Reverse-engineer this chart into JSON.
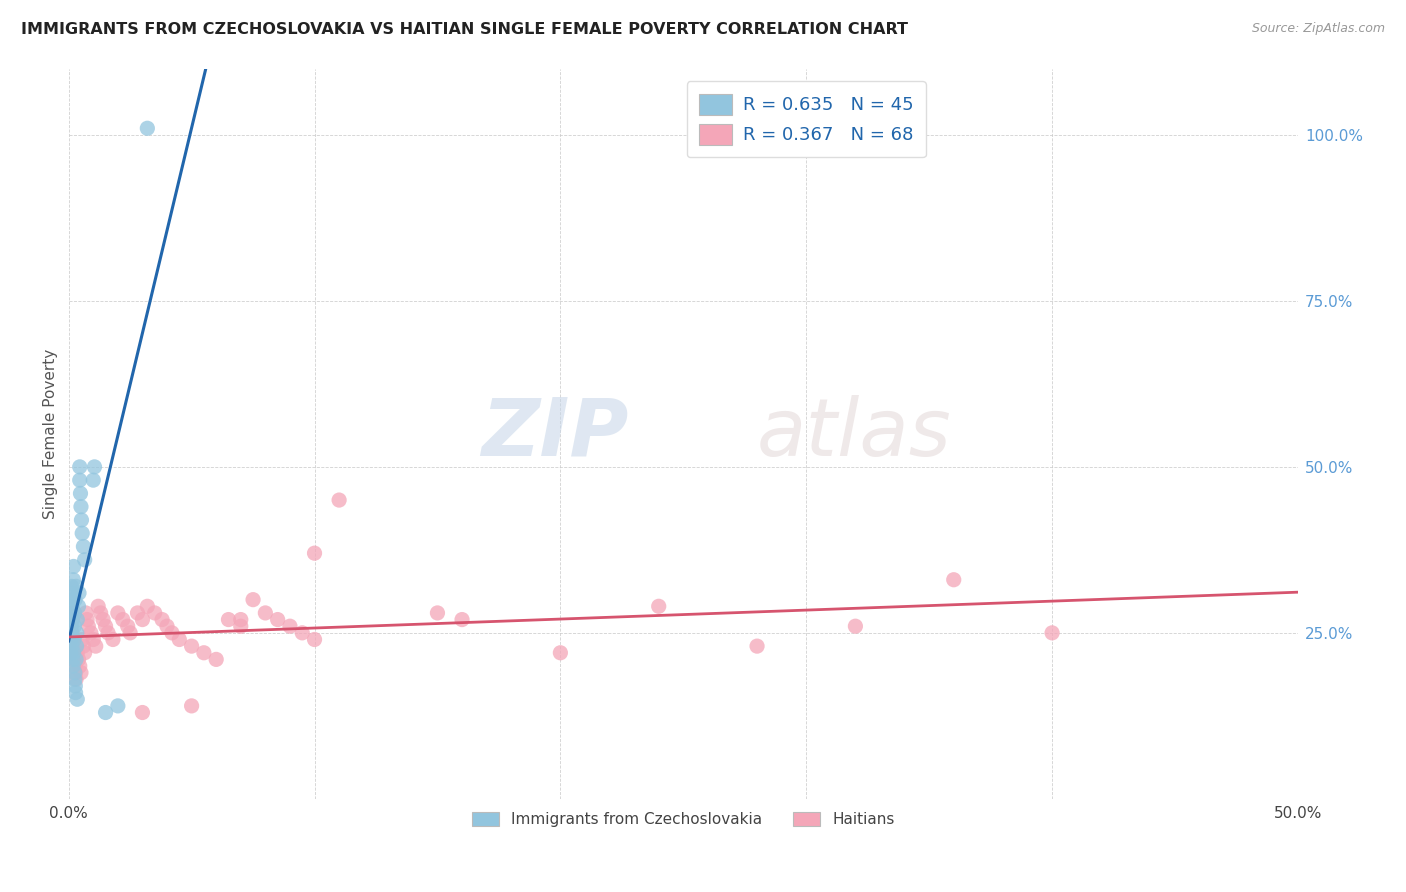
{
  "title": "IMMIGRANTS FROM CZECHOSLOVAKIA VS HAITIAN SINGLE FEMALE POVERTY CORRELATION CHART",
  "source": "Source: ZipAtlas.com",
  "ylabel": "Single Female Poverty",
  "legend_label1": "R = 0.635   N = 45",
  "legend_label2": "R = 0.367   N = 68",
  "legend_label_bottom1": "Immigrants from Czechoslovakia",
  "legend_label_bottom2": "Haitians",
  "watermark_zip": "ZIP",
  "watermark_atlas": "atlas",
  "blue_color": "#92c5de",
  "pink_color": "#f4a6b8",
  "blue_line_color": "#2166ac",
  "pink_line_color": "#d6546e",
  "blue_scatter": [
    [
      0.0008,
      0.22
    ],
    [
      0.0009,
      0.24
    ],
    [
      0.001,
      0.26
    ],
    [
      0.001,
      0.28
    ],
    [
      0.0011,
      0.3
    ],
    [
      0.0012,
      0.32
    ],
    [
      0.0013,
      0.25
    ],
    [
      0.0014,
      0.23
    ],
    [
      0.0015,
      0.27
    ],
    [
      0.0015,
      0.29
    ],
    [
      0.0016,
      0.31
    ],
    [
      0.0017,
      0.21
    ],
    [
      0.0018,
      0.2
    ],
    [
      0.0019,
      0.33
    ],
    [
      0.002,
      0.35
    ],
    [
      0.002,
      0.22
    ],
    [
      0.0022,
      0.24
    ],
    [
      0.0023,
      0.26
    ],
    [
      0.0024,
      0.28
    ],
    [
      0.0025,
      0.18
    ],
    [
      0.0025,
      0.19
    ],
    [
      0.0026,
      0.3
    ],
    [
      0.0027,
      0.17
    ],
    [
      0.0028,
      0.16
    ],
    [
      0.003,
      0.32
    ],
    [
      0.003,
      0.21
    ],
    [
      0.0032,
      0.23
    ],
    [
      0.0033,
      0.25
    ],
    [
      0.0035,
      0.15
    ],
    [
      0.0035,
      0.27
    ],
    [
      0.004,
      0.29
    ],
    [
      0.0042,
      0.31
    ],
    [
      0.0045,
      0.48
    ],
    [
      0.0045,
      0.5
    ],
    [
      0.0048,
      0.46
    ],
    [
      0.005,
      0.44
    ],
    [
      0.0052,
      0.42
    ],
    [
      0.0055,
      0.4
    ],
    [
      0.006,
      0.38
    ],
    [
      0.0065,
      0.36
    ],
    [
      0.01,
      0.48
    ],
    [
      0.0105,
      0.5
    ],
    [
      0.015,
      0.13
    ],
    [
      0.02,
      0.14
    ],
    [
      0.032,
      1.01
    ]
  ],
  "pink_scatter": [
    [
      0.0008,
      0.22
    ],
    [
      0.0009,
      0.24
    ],
    [
      0.001,
      0.26
    ],
    [
      0.0012,
      0.28
    ],
    [
      0.0013,
      0.25
    ],
    [
      0.0015,
      0.23
    ],
    [
      0.0016,
      0.27
    ],
    [
      0.0018,
      0.22
    ],
    [
      0.002,
      0.24
    ],
    [
      0.0022,
      0.21
    ],
    [
      0.0025,
      0.2
    ],
    [
      0.0028,
      0.19
    ],
    [
      0.003,
      0.18
    ],
    [
      0.0035,
      0.22
    ],
    [
      0.004,
      0.21
    ],
    [
      0.0045,
      0.2
    ],
    [
      0.005,
      0.19
    ],
    [
      0.0055,
      0.24
    ],
    [
      0.006,
      0.23
    ],
    [
      0.0065,
      0.22
    ],
    [
      0.007,
      0.28
    ],
    [
      0.0075,
      0.27
    ],
    [
      0.008,
      0.26
    ],
    [
      0.009,
      0.25
    ],
    [
      0.01,
      0.24
    ],
    [
      0.011,
      0.23
    ],
    [
      0.012,
      0.29
    ],
    [
      0.013,
      0.28
    ],
    [
      0.014,
      0.27
    ],
    [
      0.015,
      0.26
    ],
    [
      0.016,
      0.25
    ],
    [
      0.018,
      0.24
    ],
    [
      0.02,
      0.28
    ],
    [
      0.022,
      0.27
    ],
    [
      0.024,
      0.26
    ],
    [
      0.025,
      0.25
    ],
    [
      0.028,
      0.28
    ],
    [
      0.03,
      0.27
    ],
    [
      0.032,
      0.29
    ],
    [
      0.035,
      0.28
    ],
    [
      0.038,
      0.27
    ],
    [
      0.04,
      0.26
    ],
    [
      0.042,
      0.25
    ],
    [
      0.045,
      0.24
    ],
    [
      0.05,
      0.23
    ],
    [
      0.055,
      0.22
    ],
    [
      0.06,
      0.21
    ],
    [
      0.065,
      0.27
    ],
    [
      0.07,
      0.26
    ],
    [
      0.075,
      0.3
    ],
    [
      0.08,
      0.28
    ],
    [
      0.085,
      0.27
    ],
    [
      0.09,
      0.26
    ],
    [
      0.095,
      0.25
    ],
    [
      0.1,
      0.24
    ],
    [
      0.11,
      0.45
    ],
    [
      0.15,
      0.28
    ],
    [
      0.16,
      0.27
    ],
    [
      0.2,
      0.22
    ],
    [
      0.24,
      0.29
    ],
    [
      0.28,
      0.23
    ],
    [
      0.32,
      0.26
    ],
    [
      0.36,
      0.33
    ],
    [
      0.4,
      0.25
    ],
    [
      0.03,
      0.13
    ],
    [
      0.05,
      0.14
    ],
    [
      0.07,
      0.27
    ],
    [
      0.1,
      0.37
    ]
  ],
  "xlim": [
    0.0,
    0.5
  ],
  "ylim": [
    0.0,
    1.1
  ],
  "y_tick_vals": [
    0.25,
    0.5,
    0.75,
    1.0
  ],
  "y_tick_labels": [
    "25.0%",
    "50.0%",
    "75.0%",
    "100.0%"
  ]
}
